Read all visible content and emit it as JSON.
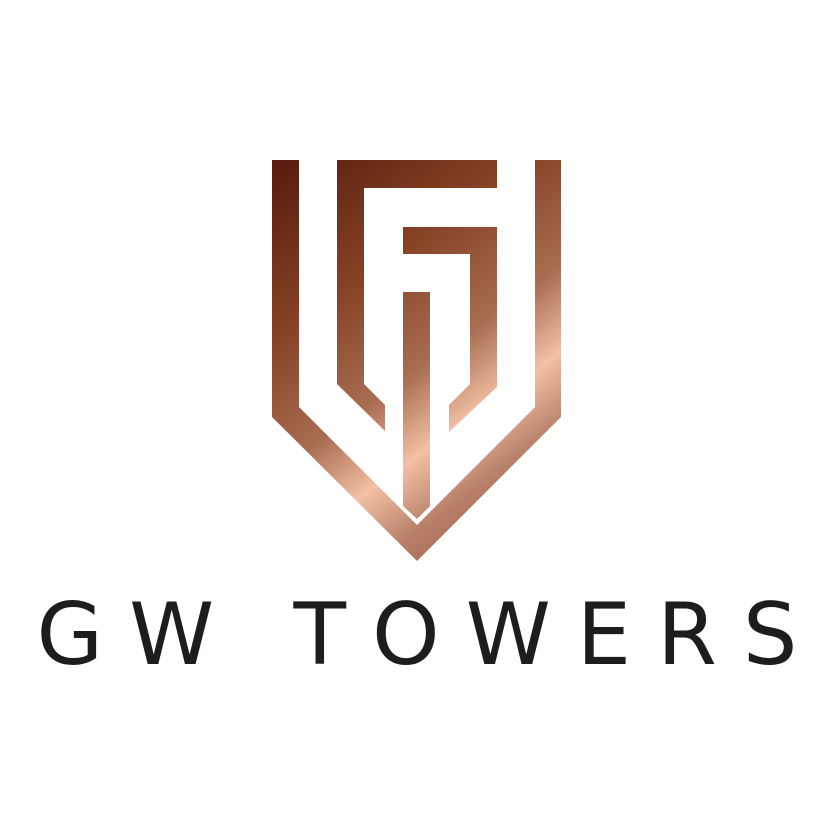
{
  "logo": {
    "wordmark": "GW TOWERS",
    "emblem_icon": "gw-shield-monogram-icon"
  },
  "colors": {
    "background": "#ffffff",
    "wordmark": "#1f1c1c",
    "copper_dark": "#5a1d0e",
    "copper_mid": "#9a5637",
    "copper_light": "#f2c1a6"
  }
}
